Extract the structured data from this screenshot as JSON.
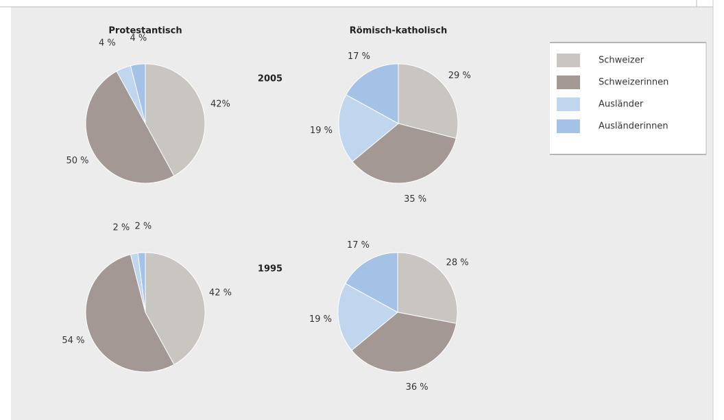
{
  "chart_data": [
    {
      "type": "pie",
      "title": "Protestantisch",
      "values": [
        42,
        50,
        4,
        4
      ],
      "value_labels": [
        "42%",
        "50 %",
        "4 %",
        "4 %"
      ]
    },
    {
      "type": "pie",
      "title": "Römisch-katholisch",
      "values": [
        29,
        35,
        19,
        17
      ],
      "value_labels": [
        "29 %",
        "35 %",
        "19 %",
        "17 %"
      ]
    },
    {
      "type": "pie",
      "values": [
        42,
        54,
        2,
        2
      ],
      "value_labels": [
        "42 %",
        "54 %",
        "2 %",
        "2 %"
      ]
    },
    {
      "type": "pie",
      "values": [
        28,
        36,
        19,
        17
      ],
      "value_labels": [
        "28 %",
        "36 %",
        "19 %",
        "17 %"
      ]
    }
  ],
  "row_labels": [
    "2005",
    "1995"
  ],
  "legend": {
    "labels": [
      "Schweizer",
      "Schweizerinnen",
      "Ausländer",
      "Ausländerinnen"
    ],
    "colors": [
      "#c9c5c0",
      "#a39893",
      "#bfd6ee",
      "#a3c2e6"
    ]
  }
}
